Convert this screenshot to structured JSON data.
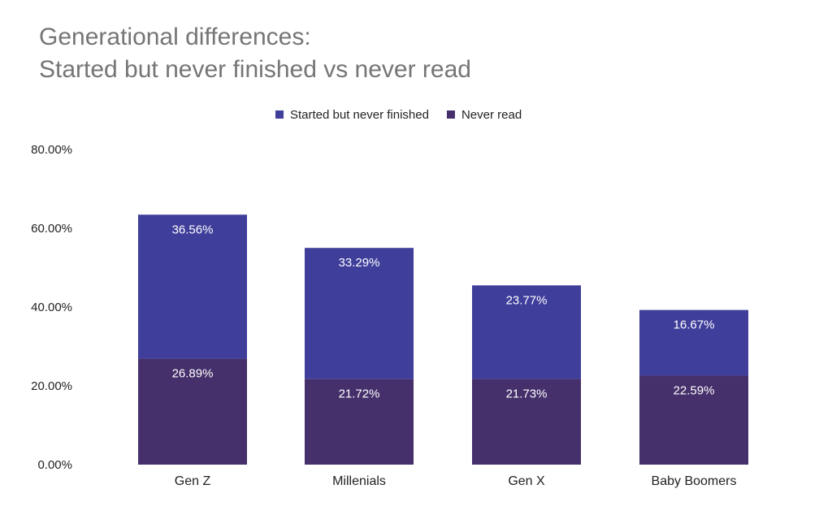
{
  "chart_data": {
    "type": "bar",
    "stacked": true,
    "title_lines": [
      "Generational differences:",
      "Started but never finished vs never read"
    ],
    "categories": [
      "Gen Z",
      "Millenials",
      "Gen X",
      "Baby Boomers"
    ],
    "series": [
      {
        "name": "Never read",
        "color": "#45306b",
        "values": [
          26.89,
          21.72,
          21.73,
          22.59
        ],
        "labels": [
          "26.89%",
          "21.72%",
          "21.73%",
          "22.59%"
        ]
      },
      {
        "name": "Started but never finished",
        "color": "#3f3e9b",
        "values": [
          36.56,
          33.29,
          23.77,
          16.67
        ],
        "labels": [
          "36.56%",
          "33.29%",
          "23.77%",
          "16.67%"
        ]
      }
    ],
    "legend": {
      "position": "top",
      "order": [
        "Started but never finished",
        "Never read"
      ]
    },
    "y_ticks": [
      "0.00%",
      "20.00%",
      "40.00%",
      "60.00%",
      "80.00%"
    ],
    "ylim": [
      0,
      80
    ],
    "grid": false
  }
}
